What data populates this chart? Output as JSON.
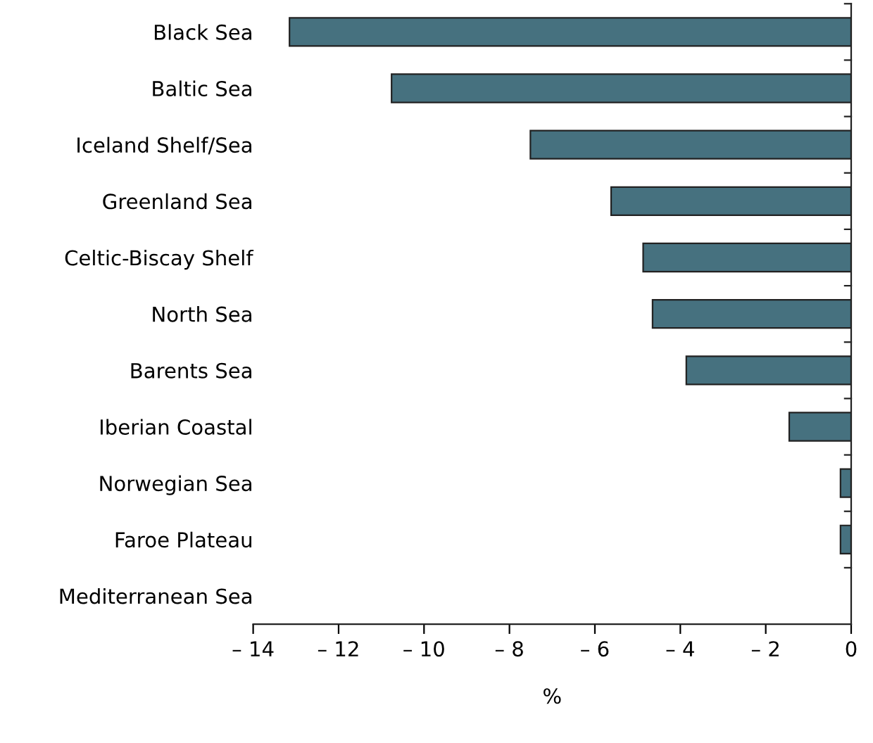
{
  "chart_data": {
    "type": "bar",
    "orientation": "horizontal",
    "xlabel": "%",
    "categories": [
      "Black Sea",
      "Baltic Sea",
      "Iceland Shelf/Sea",
      "Greenland Sea",
      "Celtic-Biscay Shelf",
      "North Sea",
      "Barents Sea",
      "Iberian Coastal",
      "Norwegian Sea",
      "Faroe Plateau",
      "Mediterranean Sea"
    ],
    "values": [
      -13.15,
      -10.76,
      -7.51,
      -5.62,
      -4.87,
      -4.65,
      -3.86,
      -1.45,
      -0.25,
      -0.25,
      null
    ],
    "color": "#46717f",
    "xlim": [
      -14,
      0
    ],
    "xticks": [
      {
        "value": -14,
        "label": "– 14"
      },
      {
        "value": -12,
        "label": "– 12"
      },
      {
        "value": -10,
        "label": "– 10"
      },
      {
        "value": -8,
        "label": "– 8"
      },
      {
        "value": -6,
        "label": "– 6"
      },
      {
        "value": -4,
        "label": "– 4"
      },
      {
        "value": -2,
        "label": "– 2"
      },
      0
    ],
    "grid": false,
    "legend": false
  }
}
